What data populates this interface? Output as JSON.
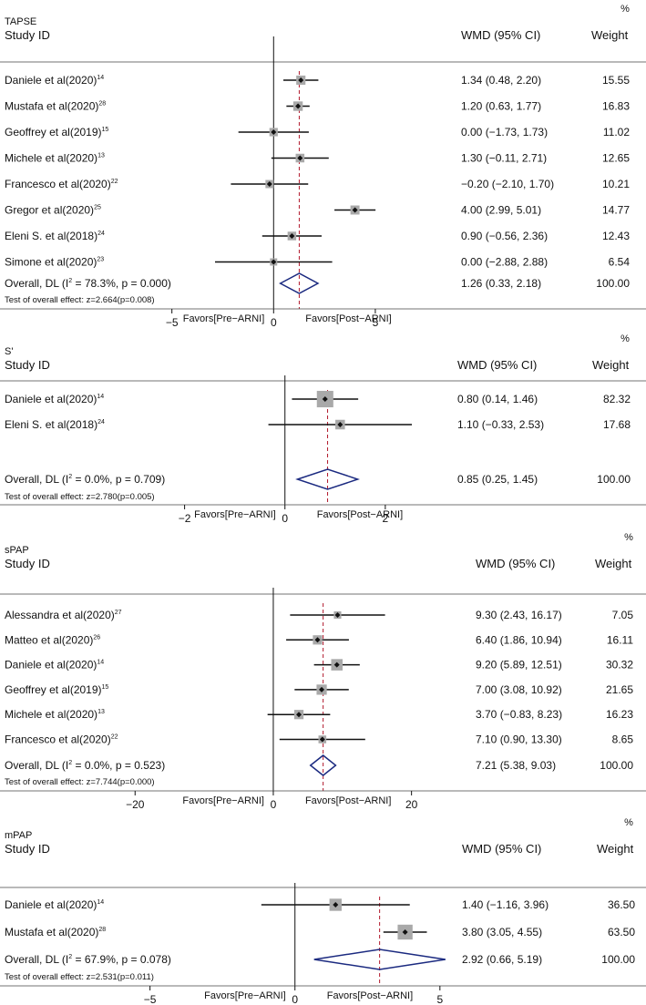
{
  "colors": {
    "ink": "#111111",
    "rule": "#444444",
    "box": "#a9a9a9",
    "diamond": "#1b2a80",
    "overall_line": "#b2182b"
  },
  "chart_data": [
    {
      "type": "forest",
      "title": "TAPSE",
      "col_study": "Study ID",
      "col_est": "WMD (95% CI)",
      "col_wt": "Weight",
      "wt_unit": "%",
      "favors_left": "Favors[Pre−ARNI]",
      "favors_right": "Favors[Post−ARNI]",
      "ticks": [
        -5,
        0,
        5
      ],
      "tick_labels": [
        "−5",
        "0",
        "5"
      ],
      "xlim": [
        -8.3,
        10.2
      ],
      "studies": [
        {
          "name": "Daniele et al(2020)",
          "ref": "14",
          "est": 1.34,
          "lo": 0.48,
          "hi": 2.2,
          "ci": "1.34 (0.48, 2.20)",
          "weight": "15.55"
        },
        {
          "name": "Mustafa et al(2020)",
          "ref": "28",
          "est": 1.2,
          "lo": 0.63,
          "hi": 1.77,
          "ci": "1.20 (0.63, 1.77)",
          "weight": "16.83"
        },
        {
          "name": "Geoffrey et al(2019)",
          "ref": "15",
          "est": 0.0,
          "lo": -1.73,
          "hi": 1.73,
          "ci": "0.00 (−1.73, 1.73)",
          "weight": "11.02"
        },
        {
          "name": "Michele et al(2020)",
          "ref": "13",
          "est": 1.3,
          "lo": -0.11,
          "hi": 2.71,
          "ci": "1.30 (−0.11, 2.71)",
          "weight": "12.65"
        },
        {
          "name": "Francesco et al(2020)",
          "ref": "22",
          "est": -0.2,
          "lo": -2.1,
          "hi": 1.7,
          "ci": "−0.20 (−2.10, 1.70)",
          "weight": "10.21"
        },
        {
          "name": "Gregor et al(2020)",
          "ref": "25",
          "est": 4.0,
          "lo": 2.99,
          "hi": 5.01,
          "ci": "4.00 (2.99, 5.01)",
          "weight": "14.77"
        },
        {
          "name": "Eleni S. et al(2018)",
          "ref": "24",
          "est": 0.9,
          "lo": -0.56,
          "hi": 2.36,
          "ci": "0.90 (−0.56, 2.36)",
          "weight": "12.43"
        },
        {
          "name": "Simone et al(2020)",
          "ref": "23",
          "est": 0.0,
          "lo": -2.88,
          "hi": 2.88,
          "ci": "0.00 (−2.88, 2.88)",
          "weight": "6.54"
        }
      ],
      "overall": {
        "label": "Overall, DL (I",
        "sup": "2",
        "stats": " = 78.3%, p = 0.000)",
        "est": 1.26,
        "lo": 0.33,
        "hi": 2.18,
        "ci": "1.26 (0.33, 2.18)",
        "weight": "100.00"
      },
      "test": "Test of overall effect:  z=2.664(p=0.008)"
    },
    {
      "type": "forest",
      "title": "S'",
      "col_study": "Study ID",
      "col_est": "WMD (95% CI)",
      "col_wt": "Weight",
      "wt_unit": "%",
      "favors_left": "Favors[Pre−ARNI]",
      "favors_right": "Favors[Post−ARNI]",
      "ticks": [
        -2,
        0,
        2
      ],
      "tick_labels": [
        "−2",
        "0",
        "2"
      ],
      "xlim": [
        -3.5,
        4.0
      ],
      "studies": [
        {
          "name": "Daniele et al(2020)",
          "ref": "14",
          "est": 0.8,
          "lo": 0.14,
          "hi": 1.46,
          "ci": "0.80 (0.14, 1.46)",
          "weight": "82.32"
        },
        {
          "name": "Eleni S. et al(2018)",
          "ref": "24",
          "est": 1.1,
          "lo": -0.33,
          "hi": 2.53,
          "ci": "1.10 (−0.33, 2.53)",
          "weight": "17.68"
        }
      ],
      "overall": {
        "label": "Overall, DL (I",
        "sup": "2",
        "stats": " = 0.0%, p = 0.709)",
        "est": 0.85,
        "lo": 0.25,
        "hi": 1.45,
        "ci": "0.85 (0.25, 1.45)",
        "weight": "100.00"
      },
      "test": "Test of overall effect:  z=2.780(p=0.005)"
    },
    {
      "type": "forest",
      "title": "sPAP",
      "col_study": "Study ID",
      "col_est": "WMD (95% CI)",
      "col_wt": "Weight",
      "wt_unit": "%",
      "favors_left": "Favors[Pre−ARNI]",
      "favors_right": "Favors[Post−ARNI]",
      "ticks": [
        -20,
        0,
        20
      ],
      "tick_labels": [
        "−20",
        "0",
        "20"
      ],
      "xlim": [
        -29,
        36
      ],
      "studies": [
        {
          "name": "Alessandra et al(2020)",
          "ref": "27",
          "est": 9.3,
          "lo": 2.43,
          "hi": 16.17,
          "ci": "9.30 (2.43, 16.17)",
          "weight": "7.05"
        },
        {
          "name": "Matteo et al(2020)",
          "ref": "26",
          "est": 6.4,
          "lo": 1.86,
          "hi": 10.94,
          "ci": "6.40 (1.86, 10.94)",
          "weight": "16.11"
        },
        {
          "name": "Daniele et al(2020)",
          "ref": "14",
          "est": 9.2,
          "lo": 5.89,
          "hi": 12.51,
          "ci": "9.20 (5.89, 12.51)",
          "weight": "30.32"
        },
        {
          "name": "Geoffrey et al(2019)",
          "ref": "15",
          "est": 7.0,
          "lo": 3.08,
          "hi": 10.92,
          "ci": "7.00 (3.08, 10.92)",
          "weight": "21.65"
        },
        {
          "name": "Michele et al(2020)",
          "ref": "13",
          "est": 3.7,
          "lo": -0.83,
          "hi": 8.23,
          "ci": "3.70 (−0.83, 8.23)",
          "weight": "16.23"
        },
        {
          "name": "Francesco et al(2020)",
          "ref": "22",
          "est": 7.1,
          "lo": 0.9,
          "hi": 13.3,
          "ci": "7.10 (0.90, 13.30)",
          "weight": "8.65"
        }
      ],
      "overall": {
        "label": "Overall, DL (I",
        "sup": "2",
        "stats": " = 0.0%, p = 0.523)",
        "est": 7.21,
        "lo": 5.38,
        "hi": 9.03,
        "ci": "7.21 (5.38, 9.03)",
        "weight": "100.00"
      },
      "test": "Test of overall effect:  z=7.744(p=0.000)"
    },
    {
      "type": "forest",
      "title": "mPAP",
      "col_study": "Study ID",
      "col_est": "WMD (95% CI)",
      "col_wt": "Weight",
      "wt_unit": "%",
      "favors_left": "Favors[Pre−ARNI]",
      "favors_right": "Favors[Post−ARNI]",
      "ticks": [
        -5,
        0,
        5
      ],
      "tick_labels": [
        "−5",
        "0",
        "5"
      ],
      "xlim": [
        -8.1,
        7.3
      ],
      "studies": [
        {
          "name": "Daniele et al(2020)",
          "ref": "14",
          "est": 1.4,
          "lo": -1.16,
          "hi": 3.96,
          "ci": "1.40 (−1.16, 3.96)",
          "weight": "36.50"
        },
        {
          "name": "Mustafa et al(2020)",
          "ref": "28",
          "est": 3.8,
          "lo": 3.05,
          "hi": 4.55,
          "ci": "3.80 (3.05, 4.55)",
          "weight": "63.50"
        }
      ],
      "overall": {
        "label": "Overall, DL (I",
        "sup": "2",
        "stats": " = 67.9%, p = 0.078)",
        "est": 2.92,
        "lo": 0.66,
        "hi": 5.19,
        "ci": "2.92 (0.66, 5.19)",
        "weight": "100.00"
      },
      "test": "Test of overall effect:  z=2.531(p=0.011)"
    }
  ]
}
